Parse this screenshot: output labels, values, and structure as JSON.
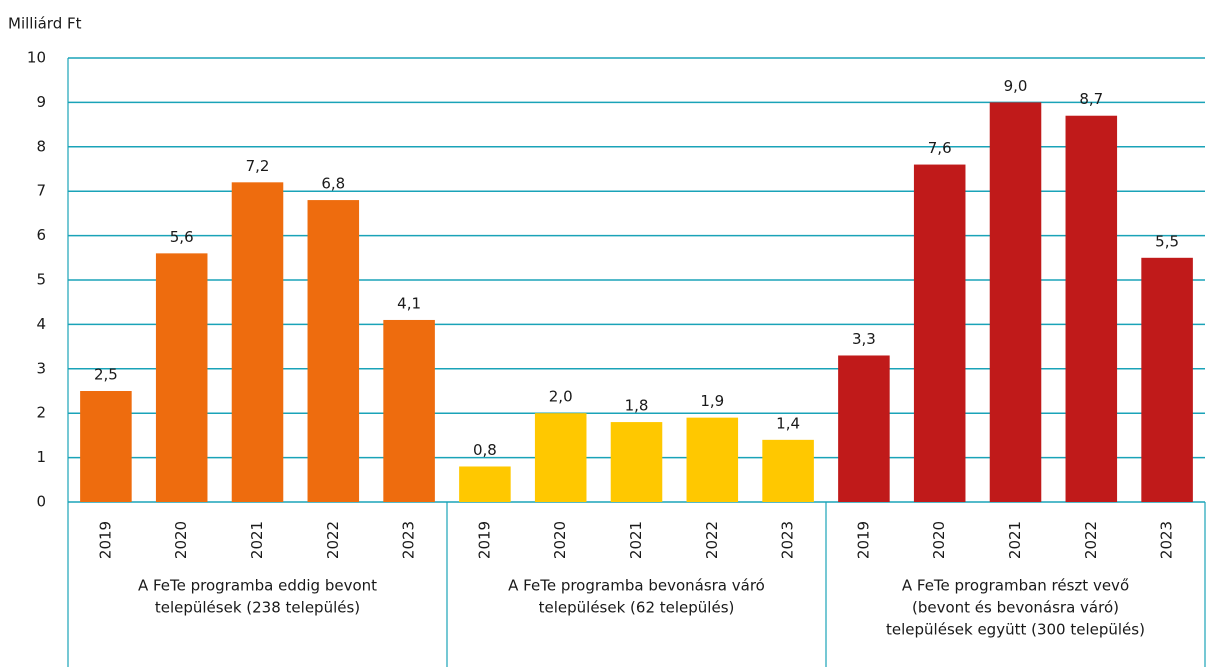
{
  "chart_data": {
    "type": "bar",
    "y_label": "Milliárd Ft",
    "ylim": [
      0,
      10
    ],
    "yticks": [
      0,
      1,
      2,
      3,
      4,
      5,
      6,
      7,
      8,
      9,
      10
    ],
    "grid": true,
    "groups": [
      {
        "label": [
          "A FeTe programba eddig bevont",
          "települések (238 település)"
        ],
        "color": "#ee6c0e",
        "categories": [
          "2019",
          "2020",
          "2021",
          "2022",
          "2023"
        ],
        "values": [
          2.5,
          5.6,
          7.2,
          6.8,
          4.1
        ],
        "value_labels": [
          "2,5",
          "5,6",
          "7,2",
          "6,8",
          "4,1"
        ]
      },
      {
        "label": [
          "A FeTe programba bevonásra váró",
          "települések (62 település)"
        ],
        "color": "#ffc800",
        "categories": [
          "2019",
          "2020",
          "2021",
          "2022",
          "2023"
        ],
        "values": [
          0.8,
          2.0,
          1.8,
          1.9,
          1.4
        ],
        "value_labels": [
          "0,8",
          "2,0",
          "1,8",
          "1,9",
          "1,4"
        ]
      },
      {
        "label": [
          "A FeTe programban részt vevő",
          "(bevont és bevonásra váró)",
          "települések együtt (300 település)"
        ],
        "color": "#c01a1a",
        "categories": [
          "2019",
          "2020",
          "2021",
          "2022",
          "2023"
        ],
        "values": [
          3.3,
          7.6,
          9.0,
          8.7,
          5.5
        ],
        "value_labels": [
          "3,3",
          "7,6",
          "9,0",
          "8,7",
          "5,5"
        ]
      }
    ]
  }
}
